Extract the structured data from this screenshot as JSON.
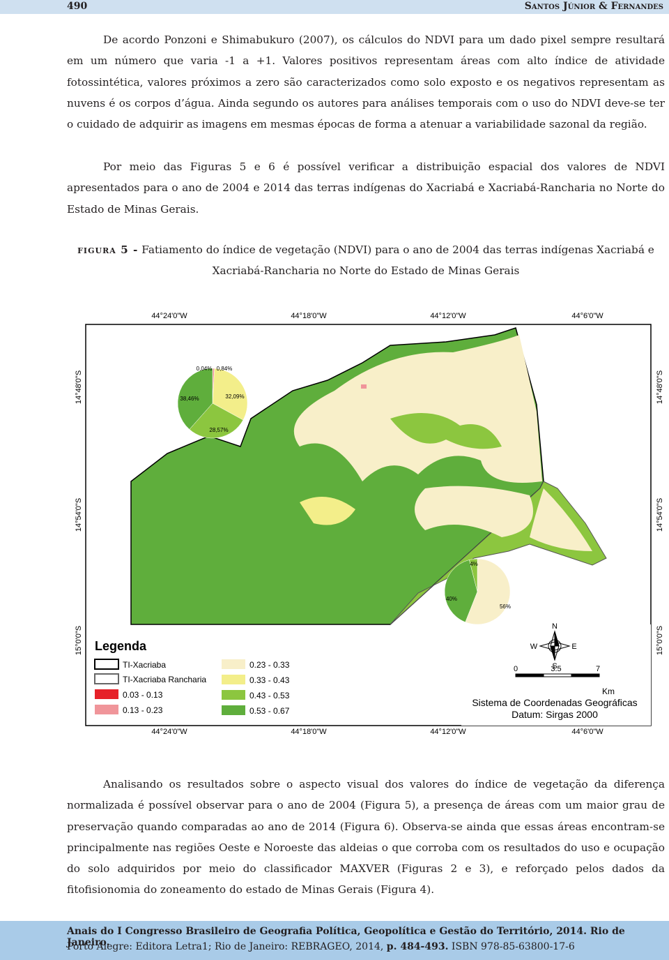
{
  "header": {
    "page_number": "490",
    "authors": "Santos Júnior & Fernandes"
  },
  "paragraphs": [
    "De acordo Ponzoni e Shimabukuro (2007), os cálculos do NDVI para um dado pixel sempre resultará em um número que varia -1 a +1. Valores positivos representam áreas com alto índice de atividade fotossintética, valores próximos a zero são caracterizados como solo exposto e os negativos representam as nuvens é os corpos d’água. Ainda segundo os autores para análises temporais com o uso do NDVI deve-se ter o cuidado de adquirir as imagens em mesmas épocas de forma a atenuar a variabilidade sazonal da região.",
    "Por meio das Figuras 5 e 6 é possível verificar a distribuição espacial dos valores de NDVI apresentados para o ano de 2004 e 2014 das terras indígenas do Xacriabá e Xacriabá-Rancharia no Norte do Estado de Minas Gerais."
  ],
  "figure": {
    "label": "figura 5 -",
    "caption": "Fatiamento do índice de vegetação (NDVI) para o ano de 2004 das terras indígenas Xacriabá e Xacriabá-Rancharia no Norte do Estado de Minas Gerais",
    "top_coords": [
      "44°24'0\"W",
      "44°18'0\"W",
      "44°12'0\"W",
      "44°6'0\"W"
    ],
    "bottom_coords": [
      "44°24'0\"W",
      "44°18'0\"W",
      "44°12'0\"W",
      "44°6'0\"W"
    ],
    "left_coords": [
      "14°48'0\"S",
      "14°54'0\"S",
      "15°0'0\"S"
    ],
    "right_coords": [
      "14°48'0\"S",
      "14°54'0\"S",
      "15°0'0\"S"
    ],
    "pie_xacriaba": [
      {
        "value": 0.04,
        "label": "0,04%",
        "color": "#e62129"
      },
      {
        "value": 0.84,
        "label": "0,84%",
        "color": "#f0959a"
      },
      {
        "value": 32.09,
        "label": "32,09%",
        "color": "#f3ee8a"
      },
      {
        "value": 28.57,
        "label": "28,57%",
        "color": "#8cc63f"
      },
      {
        "value": 38.46,
        "label": "38,46%",
        "color": "#5fae3c"
      }
    ],
    "pie_rancharia": [
      {
        "value": 56,
        "label": "56%",
        "color": "#f8efc9"
      },
      {
        "value": 40,
        "label": "40%",
        "color": "#5fae3c"
      },
      {
        "value": 4,
        "label": "4%",
        "color": "#8cc63f"
      }
    ],
    "legend": {
      "title": "Legenda",
      "items": [
        {
          "label": "TI-Xacriaba",
          "color": "#ffffff",
          "border": "#000000"
        },
        {
          "label": "TI-Xacriaba Rancharia",
          "color": "#ffffff",
          "border": "#666666"
        },
        {
          "label": "0.03 - 0.13",
          "color": "#e62129"
        },
        {
          "label": "0.13 - 0.23",
          "color": "#f0959a"
        },
        {
          "label": "0.23 - 0.33",
          "color": "#f8efc9"
        },
        {
          "label": "0.33 - 0.43",
          "color": "#f3ee8a"
        },
        {
          "label": "0.43 - 0.53",
          "color": "#8cc63f"
        },
        {
          "label": "0.53 - 0.67",
          "color": "#5fae3c"
        }
      ]
    },
    "compass": {
      "n": "N",
      "s": "S",
      "w": "W",
      "e": "E"
    },
    "scale": {
      "ticks": [
        "0",
        "3.5",
        "7"
      ],
      "unit": "Km"
    },
    "crs": "Sistema de Coordenadas Geográficas",
    "datum": "Datum: Sirgas 2000"
  },
  "paragraph_after": "Analisando os resultados sobre o aspecto visual dos valores do índice de vegetação da diferença normalizada é possível observar para o ano de 2004 (Figura 5), a presença de áreas com um maior grau de preservação quando comparadas ao ano de 2014 (Figura 6). Observa-se ainda que essas áreas encontram-se principalmente nas regiões Oeste e Noroeste das aldeias o que corroba com os resultados do uso e ocupação do solo adquiridos por meio do classificador MAXVER (Figuras 2 e 3), e reforçado pelos dados da fitofisionomia do zoneamento do estado de Minas Gerais (Figura 4).",
  "footer": {
    "line1": "Anais do I Congresso Brasileiro de Geografia Política, Geopolítica e Gestão do Território, 2014. Rio de Janeiro.",
    "line2_a": "Porto Alegre: Editora Letra1; Rio de Janeiro: REBRAGEO, 2014,",
    "line2_b": "p. 484-493.",
    "line2_c": "ISBN 978-85-63800-17-6"
  }
}
